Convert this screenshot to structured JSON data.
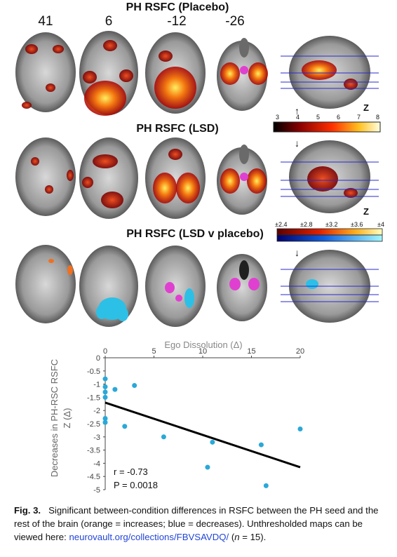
{
  "rows": [
    {
      "title": "PH RSFC (Placebo)"
    },
    {
      "title": "PH RSFC (LSD)"
    },
    {
      "title": "PH RSFC (LSD v placebo)"
    }
  ],
  "slice_labels": [
    "41",
    "6",
    "-12",
    "-26"
  ],
  "colorbar_1": {
    "ticks": [
      "3",
      "4",
      "5",
      "6",
      "7",
      "8"
    ],
    "label": "Z",
    "arrow": "↑"
  },
  "colorbar_2": {
    "ticks": [
      "±2.4",
      "±2.8",
      "±3.2",
      "±3.6",
      "±4"
    ],
    "label": "Z",
    "arrow": "↓"
  },
  "row3_arrow": "↓",
  "colors": {
    "hot_low": "#6e0000",
    "hot_mid": "#e8300a",
    "hot_high": "#ffe94a",
    "cool": "#2cc0e6",
    "magenta": "#e040d0",
    "accent_line": "#2a2ad0"
  },
  "chart_data": {
    "type": "scatter",
    "title": "Ego Dissolution (Δ)",
    "xlabel": "",
    "ylabel": "Decreases in PH-RSC RSFC\nZ (Δ)",
    "xlim": [
      0,
      20
    ],
    "ylim": [
      -5,
      0
    ],
    "xticks": [
      "0",
      "5",
      "10",
      "15",
      "20"
    ],
    "yticks": [
      "0",
      "-0.5",
      "-1",
      "-1.5",
      "-2",
      "-2.5",
      "-3",
      "-3.5",
      "-4",
      "-4.5",
      "-5"
    ],
    "points": [
      {
        "x": 0,
        "y": -0.8
      },
      {
        "x": 0,
        "y": -1.1
      },
      {
        "x": 0,
        "y": -1.3
      },
      {
        "x": 0,
        "y": -1.5
      },
      {
        "x": 0,
        "y": -2.3
      },
      {
        "x": 0,
        "y": -2.45
      },
      {
        "x": 1,
        "y": -1.2
      },
      {
        "x": 2,
        "y": -2.6
      },
      {
        "x": 3,
        "y": -1.05
      },
      {
        "x": 6,
        "y": -3.0
      },
      {
        "x": 10.5,
        "y": -4.15
      },
      {
        "x": 11,
        "y": -3.2
      },
      {
        "x": 16,
        "y": -3.3
      },
      {
        "x": 16.5,
        "y": -4.85
      },
      {
        "x": 20,
        "y": -2.7
      }
    ],
    "fit_line": {
      "x": [
        0,
        20
      ],
      "y": [
        -1.7,
        -4.15
      ]
    },
    "annotations": [
      "r = -0.73",
      "P = 0.0018"
    ],
    "point_color": "#2aa8d8"
  },
  "caption": {
    "label": "Fig. 3.",
    "text": "Significant between-condition differences in RSFC between the PH seed and the rest of the brain (orange = increases; blue = decreases). Unthresholded maps can be viewed here: ",
    "link": "neurovault.org/collections/FBVSAVDQ/",
    "n_open": " (",
    "n_text": "n",
    "n_close": " = 15)."
  }
}
